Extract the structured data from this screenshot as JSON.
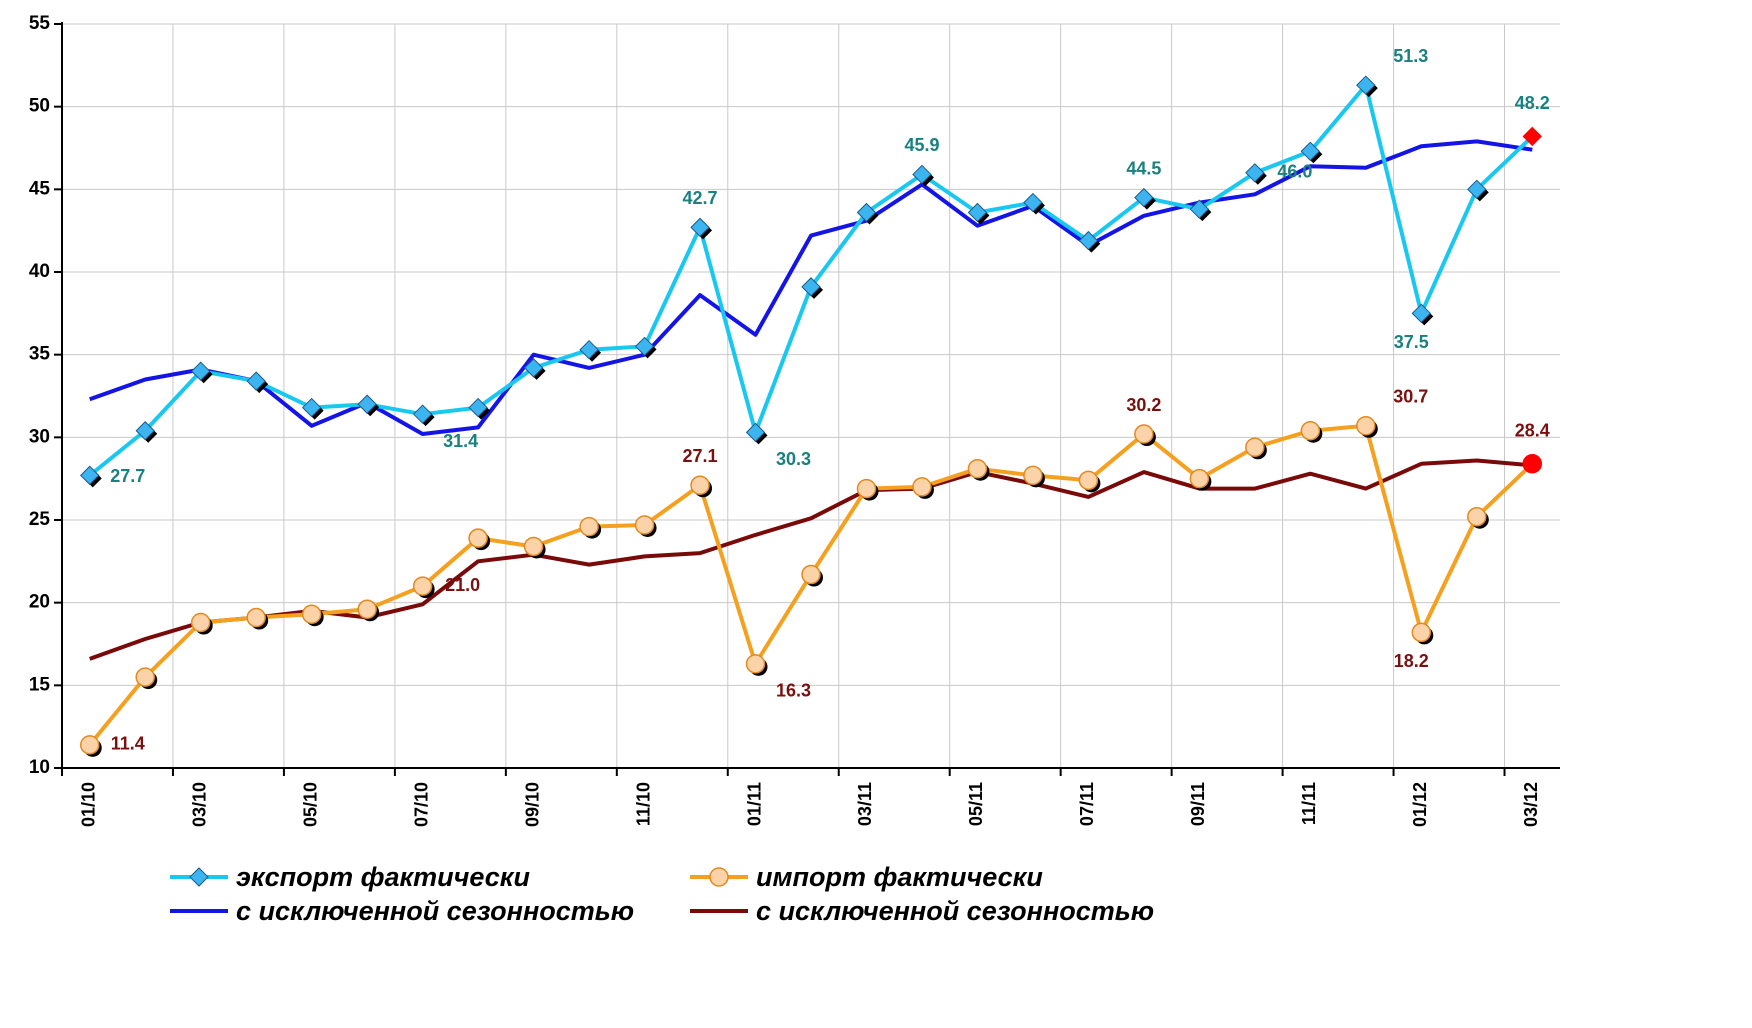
{
  "chart_data": {
    "type": "line",
    "categories": [
      "01/10",
      null,
      "03/10",
      null,
      "05/10",
      null,
      "07/10",
      null,
      "09/10",
      null,
      "11/10",
      null,
      "01/11",
      null,
      "03/11",
      null,
      "05/11",
      null,
      "07/11",
      null,
      "09/11",
      null,
      "11/11",
      null,
      "01/12",
      null,
      "03/12"
    ],
    "ylim": [
      10,
      55
    ],
    "yticks": [
      10,
      15,
      20,
      25,
      30,
      35,
      40,
      45,
      50,
      55
    ],
    "grid": true,
    "legend": "bottom",
    "series": [
      {
        "name": "экспорт фактически",
        "color": "#19c8f0",
        "marker": "diamond",
        "marker_color": "#3cb4f0",
        "label_color": "#1a8080",
        "highlight_color": "#ff0000",
        "values": [
          27.7,
          30.4,
          34.0,
          33.4,
          31.8,
          32.0,
          31.4,
          31.8,
          34.2,
          35.3,
          35.5,
          42.7,
          30.3,
          39.1,
          43.6,
          45.9,
          43.6,
          44.2,
          41.9,
          44.5,
          43.8,
          46.0,
          47.3,
          51.3,
          37.5,
          45.0,
          48.2
        ],
        "value_labels": [
          "27.7",
          null,
          null,
          null,
          null,
          null,
          "31.4",
          null,
          null,
          null,
          null,
          "42.7",
          "30.3",
          null,
          null,
          "45.9",
          null,
          null,
          null,
          "44.5",
          null,
          "46.0",
          null,
          "51.3",
          "37.5",
          null,
          "48.2"
        ]
      },
      {
        "name": "импорт фактически",
        "color": "#f5a01e",
        "marker": "circle",
        "marker_color": "#fcd2a8",
        "label_color": "#7a1010",
        "highlight_color": "#ff0000",
        "values": [
          11.4,
          15.5,
          18.8,
          19.1,
          19.3,
          19.6,
          21.0,
          23.9,
          23.4,
          24.6,
          24.7,
          27.1,
          16.3,
          21.7,
          26.9,
          27.0,
          28.1,
          27.7,
          27.4,
          30.2,
          27.5,
          29.4,
          30.4,
          30.7,
          18.2,
          25.2,
          28.4
        ],
        "value_labels": [
          "11.4",
          null,
          null,
          null,
          null,
          null,
          "21.0",
          null,
          null,
          null,
          null,
          "27.1",
          "16.3",
          null,
          null,
          null,
          null,
          null,
          null,
          "30.2",
          null,
          null,
          null,
          "30.7",
          "18.2",
          null,
          "28.4"
        ]
      },
      {
        "name": "с исключенной сезонностью",
        "color": "#1414e6",
        "marker": "none",
        "values": [
          32.3,
          33.5,
          34.1,
          33.4,
          30.7,
          32.1,
          30.2,
          30.6,
          35.0,
          34.2,
          35.0,
          38.6,
          36.2,
          42.2,
          43.1,
          45.3,
          42.8,
          44.0,
          41.6,
          43.4,
          44.2,
          44.7,
          46.4,
          46.3,
          47.6,
          47.9,
          47.4
        ]
      },
      {
        "name": "с исключенной сезонностью",
        "color": "#7a0a0a",
        "marker": "none",
        "values": [
          16.6,
          17.8,
          18.8,
          19.1,
          19.5,
          19.1,
          19.9,
          22.5,
          22.9,
          22.3,
          22.8,
          23.0,
          24.1,
          25.1,
          26.8,
          26.9,
          27.9,
          27.2,
          26.4,
          27.9,
          26.9,
          26.9,
          27.8,
          26.9,
          28.4,
          28.6,
          28.3
        ]
      }
    ]
  }
}
